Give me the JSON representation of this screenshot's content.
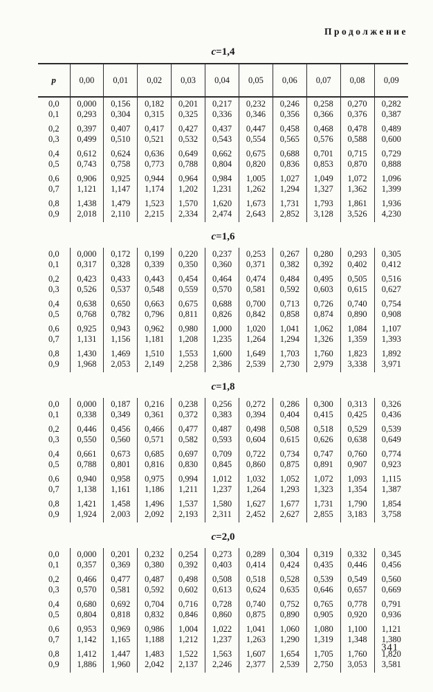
{
  "page": {
    "continuation_label": "Продолжение",
    "page_number": "341"
  },
  "table_headers": {
    "row_var": "p",
    "columns": [
      "0,00",
      "0,01",
      "0,02",
      "0,03",
      "0,04",
      "0,05",
      "0,06",
      "0,07",
      "0,08",
      "0,09"
    ]
  },
  "tables": [
    {
      "variable": "c",
      "equals": "=",
      "value": "1,4",
      "show_header": true,
      "rows": [
        {
          "p": "0,0",
          "values": [
            "0,000",
            "0,156",
            "0,182",
            "0,201",
            "0,217",
            "0,232",
            "0,246",
            "0,258",
            "0,270",
            "0,282"
          ]
        },
        {
          "p": "0,1",
          "values": [
            "0,293",
            "0,304",
            "0,315",
            "0,325",
            "0,336",
            "0,346",
            "0,356",
            "0,366",
            "0,376",
            "0,387"
          ]
        },
        {
          "p": "0,2",
          "values": [
            "0,397",
            "0,407",
            "0,417",
            "0,427",
            "0,437",
            "0,447",
            "0,458",
            "0,468",
            "0,478",
            "0,489"
          ]
        },
        {
          "p": "0,3",
          "values": [
            "0,499",
            "0,510",
            "0,521",
            "0,532",
            "0,543",
            "0,554",
            "0,565",
            "0,576",
            "0,588",
            "0,600"
          ]
        },
        {
          "p": "0,4",
          "values": [
            "0,612",
            "0,624",
            "0,636",
            "0,649",
            "0,662",
            "0,675",
            "0,688",
            "0,701",
            "0,715",
            "0,729"
          ]
        },
        {
          "p": "0,5",
          "values": [
            "0,743",
            "0,758",
            "0,773",
            "0,788",
            "0,804",
            "0,820",
            "0,836",
            "0,853",
            "0,870",
            "0,888"
          ]
        },
        {
          "p": "0,6",
          "values": [
            "0,906",
            "0,925",
            "0,944",
            "0,964",
            "0,984",
            "1,005",
            "1,027",
            "1,049",
            "1,072",
            "1,096"
          ]
        },
        {
          "p": "0,7",
          "values": [
            "1,121",
            "1,147",
            "1,174",
            "1,202",
            "1,231",
            "1,262",
            "1,294",
            "1,327",
            "1,362",
            "1,399"
          ]
        },
        {
          "p": "0,8",
          "values": [
            "1,438",
            "1,479",
            "1,523",
            "1,570",
            "1,620",
            "1,673",
            "1,731",
            "1,793",
            "1,861",
            "1,936"
          ]
        },
        {
          "p": "0,9",
          "values": [
            "2,018",
            "2,110",
            "2,215",
            "2,334",
            "2,474",
            "2,643",
            "2,852",
            "3,128",
            "3,526",
            "4,230"
          ]
        }
      ]
    },
    {
      "variable": "c",
      "equals": "=",
      "value": "1,6",
      "show_header": false,
      "rows": [
        {
          "p": "0,0",
          "values": [
            "0,000",
            "0,172",
            "0,199",
            "0,220",
            "0,237",
            "0,253",
            "0,267",
            "0,280",
            "0,293",
            "0,305"
          ]
        },
        {
          "p": "0,1",
          "values": [
            "0,317",
            "0,328",
            "0,339",
            "0,350",
            "0,360",
            "0,371",
            "0,382",
            "0,392",
            "0,402",
            "0,412"
          ]
        },
        {
          "p": "0,2",
          "values": [
            "0,423",
            "0,433",
            "0,443",
            "0,454",
            "0,464",
            "0,474",
            "0,484",
            "0,495",
            "0,505",
            "0,516"
          ]
        },
        {
          "p": "0,3",
          "values": [
            "0,526",
            "0,537",
            "0,548",
            "0,559",
            "0,570",
            "0,581",
            "0,592",
            "0,603",
            "0,615",
            "0,627"
          ]
        },
        {
          "p": "0,4",
          "values": [
            "0,638",
            "0,650",
            "0,663",
            "0,675",
            "0,688",
            "0,700",
            "0,713",
            "0,726",
            "0,740",
            "0,754"
          ]
        },
        {
          "p": "0,5",
          "values": [
            "0,768",
            "0,782",
            "0,796",
            "0,811",
            "0,826",
            "0,842",
            "0,858",
            "0,874",
            "0,890",
            "0,908"
          ]
        },
        {
          "p": "0,6",
          "values": [
            "0,925",
            "0,943",
            "0,962",
            "0,980",
            "1,000",
            "1,020",
            "1,041",
            "1,062",
            "1,084",
            "1,107"
          ]
        },
        {
          "p": "0,7",
          "values": [
            "1,131",
            "1,156",
            "1,181",
            "1,208",
            "1,235",
            "1,264",
            "1,294",
            "1,326",
            "1,359",
            "1,393"
          ]
        },
        {
          "p": "0,8",
          "values": [
            "1,430",
            "1,469",
            "1,510",
            "1,553",
            "1,600",
            "1,649",
            "1,703",
            "1,760",
            "1,823",
            "1,892"
          ]
        },
        {
          "p": "0,9",
          "values": [
            "1,968",
            "2,053",
            "2,149",
            "2,258",
            "2,386",
            "2,539",
            "2,730",
            "2,979",
            "3,338",
            "3,971"
          ]
        }
      ]
    },
    {
      "variable": "c",
      "equals": "=",
      "value": "1,8",
      "show_header": false,
      "rows": [
        {
          "p": "0,0",
          "values": [
            "0,000",
            "0,187",
            "0,216",
            "0,238",
            "0,256",
            "0,272",
            "0,286",
            "0,300",
            "0,313",
            "0,326"
          ]
        },
        {
          "p": "0,1",
          "values": [
            "0,338",
            "0,349",
            "0,361",
            "0,372",
            "0,383",
            "0,394",
            "0,404",
            "0,415",
            "0,425",
            "0,436"
          ]
        },
        {
          "p": "0,2",
          "values": [
            "0,446",
            "0,456",
            "0,466",
            "0,477",
            "0,487",
            "0,498",
            "0,508",
            "0,518",
            "0,529",
            "0,539"
          ]
        },
        {
          "p": "0,3",
          "values": [
            "0,550",
            "0,560",
            "0,571",
            "0,582",
            "0,593",
            "0,604",
            "0,615",
            "0,626",
            "0,638",
            "0,649"
          ]
        },
        {
          "p": "0,4",
          "values": [
            "0,661",
            "0,673",
            "0,685",
            "0,697",
            "0,709",
            "0,722",
            "0,734",
            "0,747",
            "0,760",
            "0,774"
          ]
        },
        {
          "p": "0,5",
          "values": [
            "0,788",
            "0,801",
            "0,816",
            "0,830",
            "0,845",
            "0,860",
            "0,875",
            "0,891",
            "0,907",
            "0,923"
          ]
        },
        {
          "p": "0,6",
          "values": [
            "0,940",
            "0,958",
            "0,975",
            "0,994",
            "1,012",
            "1,032",
            "1,052",
            "1,072",
            "1,093",
            "1,115"
          ]
        },
        {
          "p": "0,7",
          "values": [
            "1,138",
            "1,161",
            "1,186",
            "1,211",
            "1,237",
            "1,264",
            "1,293",
            "1,323",
            "1,354",
            "1,387"
          ]
        },
        {
          "p": "0,8",
          "values": [
            "1,421",
            "1,458",
            "1,496",
            "1,537",
            "1,580",
            "1,627",
            "1,677",
            "1,731",
            "1,790",
            "1,854"
          ]
        },
        {
          "p": "0,9",
          "values": [
            "1,924",
            "2,003",
            "2,092",
            "2,193",
            "2,311",
            "2,452",
            "2,627",
            "2,855",
            "3,183",
            "3,758"
          ]
        }
      ]
    },
    {
      "variable": "c",
      "equals": "=",
      "value": "2,0",
      "show_header": false,
      "rows": [
        {
          "p": "0,0",
          "values": [
            "0,000",
            "0,201",
            "0,232",
            "0,254",
            "0,273",
            "0,289",
            "0,304",
            "0,319",
            "0,332",
            "0,345"
          ]
        },
        {
          "p": "0,1",
          "values": [
            "0,357",
            "0,369",
            "0,380",
            "0,392",
            "0,403",
            "0,414",
            "0,424",
            "0,435",
            "0,446",
            "0,456"
          ]
        },
        {
          "p": "0,2",
          "values": [
            "0,466",
            "0,477",
            "0,487",
            "0,498",
            "0,508",
            "0,518",
            "0,528",
            "0,539",
            "0,549",
            "0,560"
          ]
        },
        {
          "p": "0,3",
          "values": [
            "0,570",
            "0,581",
            "0,592",
            "0,602",
            "0,613",
            "0,624",
            "0,635",
            "0,646",
            "0,657",
            "0,669"
          ]
        },
        {
          "p": "0,4",
          "values": [
            "0,680",
            "0,692",
            "0,704",
            "0,716",
            "0,728",
            "0,740",
            "0,752",
            "0,765",
            "0,778",
            "0,791"
          ]
        },
        {
          "p": "0,5",
          "values": [
            "0,804",
            "0,818",
            "0,832",
            "0,846",
            "0,860",
            "0,875",
            "0,890",
            "0,905",
            "0,920",
            "0,936"
          ]
        },
        {
          "p": "0,6",
          "values": [
            "0,953",
            "0,969",
            "0,986",
            "1,004",
            "1,022",
            "1,041",
            "1,060",
            "1,080",
            "1,100",
            "1,121"
          ]
        },
        {
          "p": "0,7",
          "values": [
            "1,142",
            "1,165",
            "1,188",
            "1,212",
            "1,237",
            "1,263",
            "1,290",
            "1,319",
            "1,348",
            "1,380"
          ]
        },
        {
          "p": "0,8",
          "values": [
            "1,412",
            "1,447",
            "1,483",
            "1,522",
            "1,563",
            "1,607",
            "1,654",
            "1,705",
            "1,760",
            "1,820"
          ]
        },
        {
          "p": "0,9",
          "values": [
            "1,886",
            "1,960",
            "2,042",
            "2,137",
            "2,246",
            "2,377",
            "2,539",
            "2,750",
            "3,053",
            "3,581"
          ]
        }
      ]
    }
  ]
}
